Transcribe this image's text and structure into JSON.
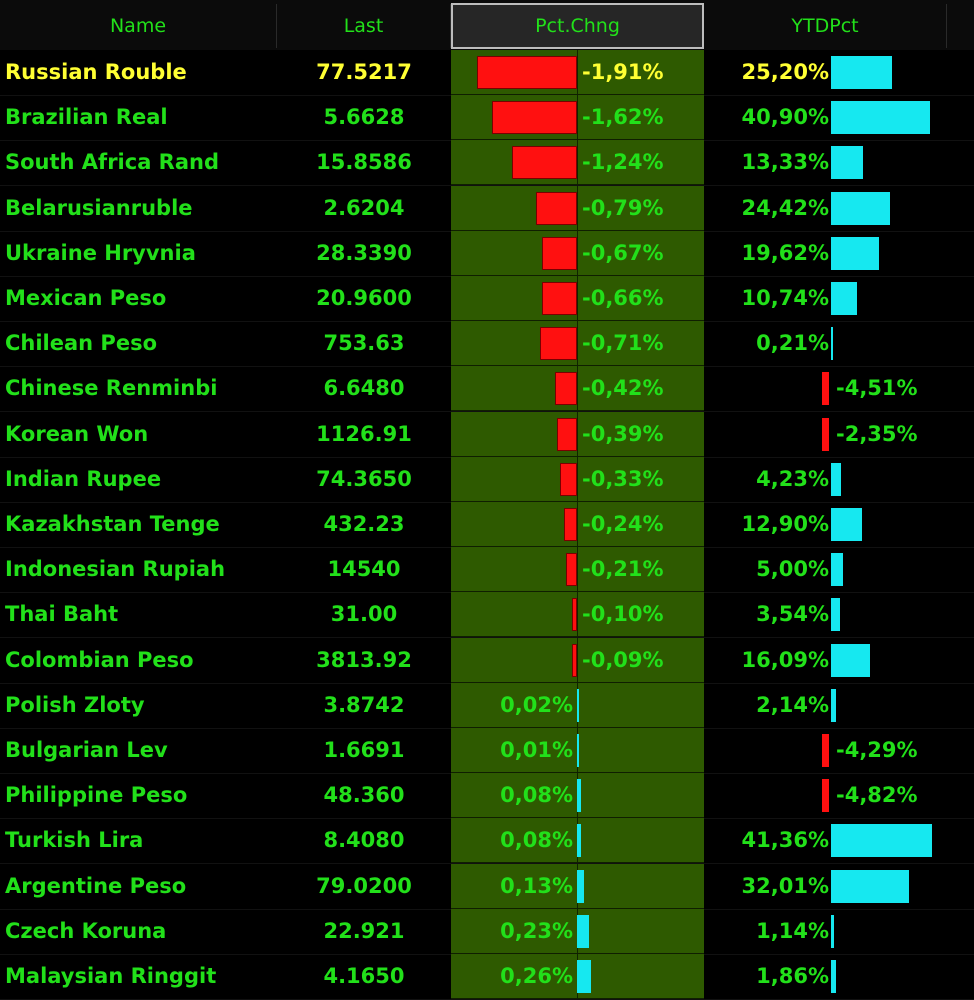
{
  "header": {
    "name": "Name",
    "last": "Last",
    "pct": "Pct.Chng",
    "ytd": "YTDPct"
  },
  "colors": {
    "text_green": "#22e01a",
    "highlight_yellow": "#ffff33",
    "pct_column_bg": "#2e5a00",
    "bar_red": "#ff1010",
    "bar_cyan": "#16e8f0"
  },
  "rows": [
    {
      "name": "Russian Rouble",
      "last": "77.5217",
      "pct": -1.91,
      "pct_label": "-1,91%",
      "ytd": 25.2,
      "ytd_label": "25,20%",
      "highlight": true
    },
    {
      "name": "Brazilian Real",
      "last": "5.6628",
      "pct": -1.62,
      "pct_label": "-1,62%",
      "ytd": 40.9,
      "ytd_label": "40,90%"
    },
    {
      "name": "South Africa Rand",
      "last": "15.8586",
      "pct": -1.24,
      "pct_label": "-1,24%",
      "ytd": 13.33,
      "ytd_label": "13,33%"
    },
    {
      "name": "Belarusianruble",
      "last": "2.6204",
      "pct": -0.79,
      "pct_label": "-0,79%",
      "ytd": 24.42,
      "ytd_label": "24,42%"
    },
    {
      "name": "Ukraine Hryvnia",
      "last": "28.3390",
      "pct": -0.67,
      "pct_label": "-0,67%",
      "ytd": 19.62,
      "ytd_label": "19,62%"
    },
    {
      "name": "Mexican Peso",
      "last": "20.9600",
      "pct": -0.66,
      "pct_label": "-0,66%",
      "ytd": 10.74,
      "ytd_label": "10,74%"
    },
    {
      "name": "Chilean Peso",
      "last": "753.63",
      "pct": -0.71,
      "pct_label": "-0,71%",
      "ytd": 0.21,
      "ytd_label": "0,21%"
    },
    {
      "name": "Chinese Renminbi",
      "last": "6.6480",
      "pct": -0.42,
      "pct_label": "-0,42%",
      "ytd": -4.51,
      "ytd_label": "-4,51%"
    },
    {
      "name": "Korean Won",
      "last": "1126.91",
      "pct": -0.39,
      "pct_label": "-0,39%",
      "ytd": -2.35,
      "ytd_label": "-2,35%"
    },
    {
      "name": "Indian Rupee",
      "last": "74.3650",
      "pct": -0.33,
      "pct_label": "-0,33%",
      "ytd": 4.23,
      "ytd_label": "4,23%"
    },
    {
      "name": "Kazakhstan Tenge",
      "last": "432.23",
      "pct": -0.24,
      "pct_label": "-0,24%",
      "ytd": 12.9,
      "ytd_label": "12,90%"
    },
    {
      "name": "Indonesian Rupiah",
      "last": "14540",
      "pct": -0.21,
      "pct_label": "-0,21%",
      "ytd": 5.0,
      "ytd_label": "5,00%"
    },
    {
      "name": "Thai Baht",
      "last": "31.00",
      "pct": -0.1,
      "pct_label": "-0,10%",
      "ytd": 3.54,
      "ytd_label": "3,54%"
    },
    {
      "name": "Colombian Peso",
      "last": "3813.92",
      "pct": -0.09,
      "pct_label": "-0,09%",
      "ytd": 16.09,
      "ytd_label": "16,09%"
    },
    {
      "name": "Polish Zloty",
      "last": "3.8742",
      "pct": 0.02,
      "pct_label": "0,02%",
      "ytd": 2.14,
      "ytd_label": "2,14%"
    },
    {
      "name": "Bulgarian Lev",
      "last": "1.6691",
      "pct": 0.01,
      "pct_label": "0,01%",
      "ytd": -4.29,
      "ytd_label": "-4,29%"
    },
    {
      "name": "Philippine Peso",
      "last": "48.360",
      "pct": 0.08,
      "pct_label": "0,08%",
      "ytd": -4.82,
      "ytd_label": "-4,82%"
    },
    {
      "name": "Turkish Lira",
      "last": "8.4080",
      "pct": 0.08,
      "pct_label": "0,08%",
      "ytd": 41.36,
      "ytd_label": "41,36%"
    },
    {
      "name": "Argentine Peso",
      "last": "79.0200",
      "pct": 0.13,
      "pct_label": "0,13%",
      "ytd": 32.01,
      "ytd_label": "32,01%"
    },
    {
      "name": "Czech Koruna",
      "last": "22.921",
      "pct": 0.23,
      "pct_label": "0,23%",
      "ytd": 1.14,
      "ytd_label": "1,14%"
    },
    {
      "name": "Malaysian Ringgit",
      "last": "4.1650",
      "pct": 0.26,
      "pct_label": "0,26%",
      "ytd": 1.86,
      "ytd_label": "1,86%"
    }
  ]
}
